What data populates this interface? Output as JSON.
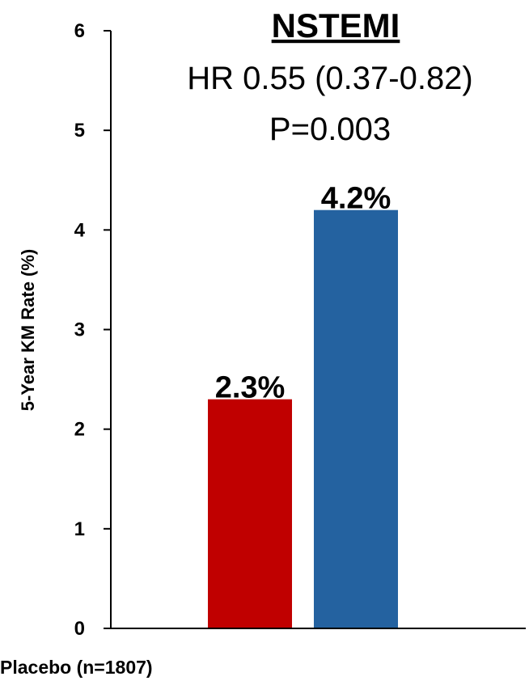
{
  "chart_data": {
    "type": "bar",
    "title": "NSTEMI",
    "subtitle_lines": [
      "HR 0.55 (0.37-0.82)",
      "P=0.003"
    ],
    "ylabel": "5-Year KM Rate (%)",
    "ylim": [
      0,
      6
    ],
    "yticks": [
      "0",
      "1",
      "2",
      "3",
      "4",
      "5",
      "6"
    ],
    "category_label": "Placebo (n=1807)",
    "bars": [
      {
        "value": 2.3,
        "label": "2.3%",
        "color": "#c00000"
      },
      {
        "value": 4.2,
        "label": "4.2%",
        "color": "#2462a0"
      }
    ],
    "grid": false,
    "legend": "none"
  }
}
